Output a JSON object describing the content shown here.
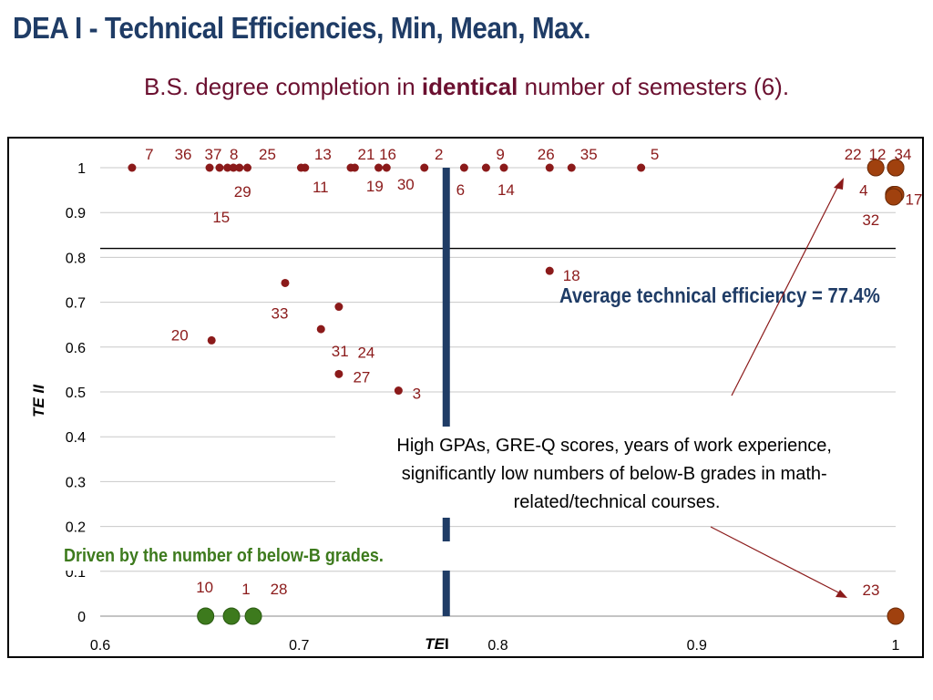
{
  "title": "DEA I - Technical Efficiencies, Min, Mean, Max.",
  "subtitle": {
    "prefix": "B.S. degree completion in ",
    "emphasis": "identical",
    "suffix": " number of semesters (6)."
  },
  "colors": {
    "dark_red": "#8b1a1a",
    "large_point": "#a0410e",
    "green": "#3d7a1d",
    "navy": "#1f3c66",
    "axis_text": "#000000"
  },
  "chart_data": {
    "type": "scatter",
    "xlabel": {
      "italic": "TE",
      "plain": " I"
    },
    "ylabel": "TE II",
    "xlim": [
      0.6,
      1.0
    ],
    "ylim": [
      0,
      1.0
    ],
    "x_ticks": [
      "0.6",
      "0.7",
      "0.8",
      "0.9",
      "1"
    ],
    "y_ticks": [
      "0",
      "0.1",
      "0.2",
      "0.3",
      "0.4",
      "0.5",
      "0.6",
      "0.7",
      "0.8",
      "0.9",
      "1"
    ],
    "grid": true,
    "mean_te1": 0.774,
    "mean_te2": 0.82,
    "average_label": "Average technical efficiency = 77.4%",
    "annotation_text": "High GPAs, GRE-Q scores, years of work experience, significantly low numbers of below-B grades in math-related/technical courses.",
    "annotation_lines": [
      "High GPAs, GRE-Q scores, years of work experience,",
      "significantly low numbers of below-B grades in math-",
      "related/technical courses."
    ],
    "green_annotation": "Driven by the number of below-B grades.",
    "points": [
      {
        "id": "7",
        "x": 0.616,
        "y": 1.0,
        "group": "small"
      },
      {
        "id": "36",
        "x": 0.655,
        "y": 1.0,
        "group": "small"
      },
      {
        "id": "37",
        "x": 0.66,
        "y": 1.0,
        "group": "small"
      },
      {
        "id": "8",
        "x": 0.664,
        "y": 1.0,
        "group": "small"
      },
      {
        "id": "29",
        "x": 0.667,
        "y": 1.0,
        "group": "small"
      },
      {
        "id": "15",
        "x": 0.67,
        "y": 1.0,
        "group": "small"
      },
      {
        "id": "25",
        "x": 0.674,
        "y": 1.0,
        "group": "small"
      },
      {
        "id": "13",
        "x": 0.701,
        "y": 1.0,
        "group": "small"
      },
      {
        "id": "11",
        "x": 0.703,
        "y": 1.0,
        "group": "small"
      },
      {
        "id": "21",
        "x": 0.726,
        "y": 1.0,
        "group": "small"
      },
      {
        "id": "19",
        "x": 0.728,
        "y": 1.0,
        "group": "small"
      },
      {
        "id": "16",
        "x": 0.74,
        "y": 1.0,
        "group": "small"
      },
      {
        "id": "30",
        "x": 0.744,
        "y": 1.0,
        "group": "small"
      },
      {
        "id": "2",
        "x": 0.763,
        "y": 1.0,
        "group": "small"
      },
      {
        "id": "6",
        "x": 0.783,
        "y": 1.0,
        "group": "small"
      },
      {
        "id": "14",
        "x": 0.794,
        "y": 1.0,
        "group": "small"
      },
      {
        "id": "9",
        "x": 0.803,
        "y": 1.0,
        "group": "small"
      },
      {
        "id": "26",
        "x": 0.826,
        "y": 1.0,
        "group": "small"
      },
      {
        "id": "35",
        "x": 0.837,
        "y": 1.0,
        "group": "small"
      },
      {
        "id": "5",
        "x": 0.872,
        "y": 1.0,
        "group": "small"
      },
      {
        "id": "18",
        "x": 0.826,
        "y": 0.77,
        "group": "small"
      },
      {
        "id": "33",
        "x": 0.693,
        "y": 0.743,
        "group": "small"
      },
      {
        "id": "20",
        "x": 0.656,
        "y": 0.615,
        "group": "small"
      },
      {
        "id": "31",
        "x": 0.711,
        "y": 0.64,
        "group": "small"
      },
      {
        "id": "24",
        "x": 0.72,
        "y": 0.69,
        "group": "small"
      },
      {
        "id": "27",
        "x": 0.72,
        "y": 0.54,
        "group": "small"
      },
      {
        "id": "3",
        "x": 0.75,
        "y": 0.503,
        "group": "small"
      },
      {
        "id": "22",
        "x": 0.99,
        "y": 1.0,
        "group": "large"
      },
      {
        "id": "12",
        "x": 1.0,
        "y": 1.0,
        "group": "large"
      },
      {
        "id": "34",
        "x": 1.0,
        "y": 1.0,
        "group": "large"
      },
      {
        "id": "4",
        "x": 0.999,
        "y": 0.94,
        "group": "large"
      },
      {
        "id": "17",
        "x": 1.0,
        "y": 0.94,
        "group": "large"
      },
      {
        "id": "32",
        "x": 0.999,
        "y": 0.935,
        "group": "large"
      },
      {
        "id": "23",
        "x": 1.0,
        "y": 0.0,
        "group": "large"
      },
      {
        "id": "10",
        "x": 0.653,
        "y": 0.0,
        "group": "green"
      },
      {
        "id": "1",
        "x": 0.666,
        "y": 0.0,
        "group": "green"
      },
      {
        "id": "28",
        "x": 0.677,
        "y": 0.0,
        "group": "green"
      }
    ]
  }
}
